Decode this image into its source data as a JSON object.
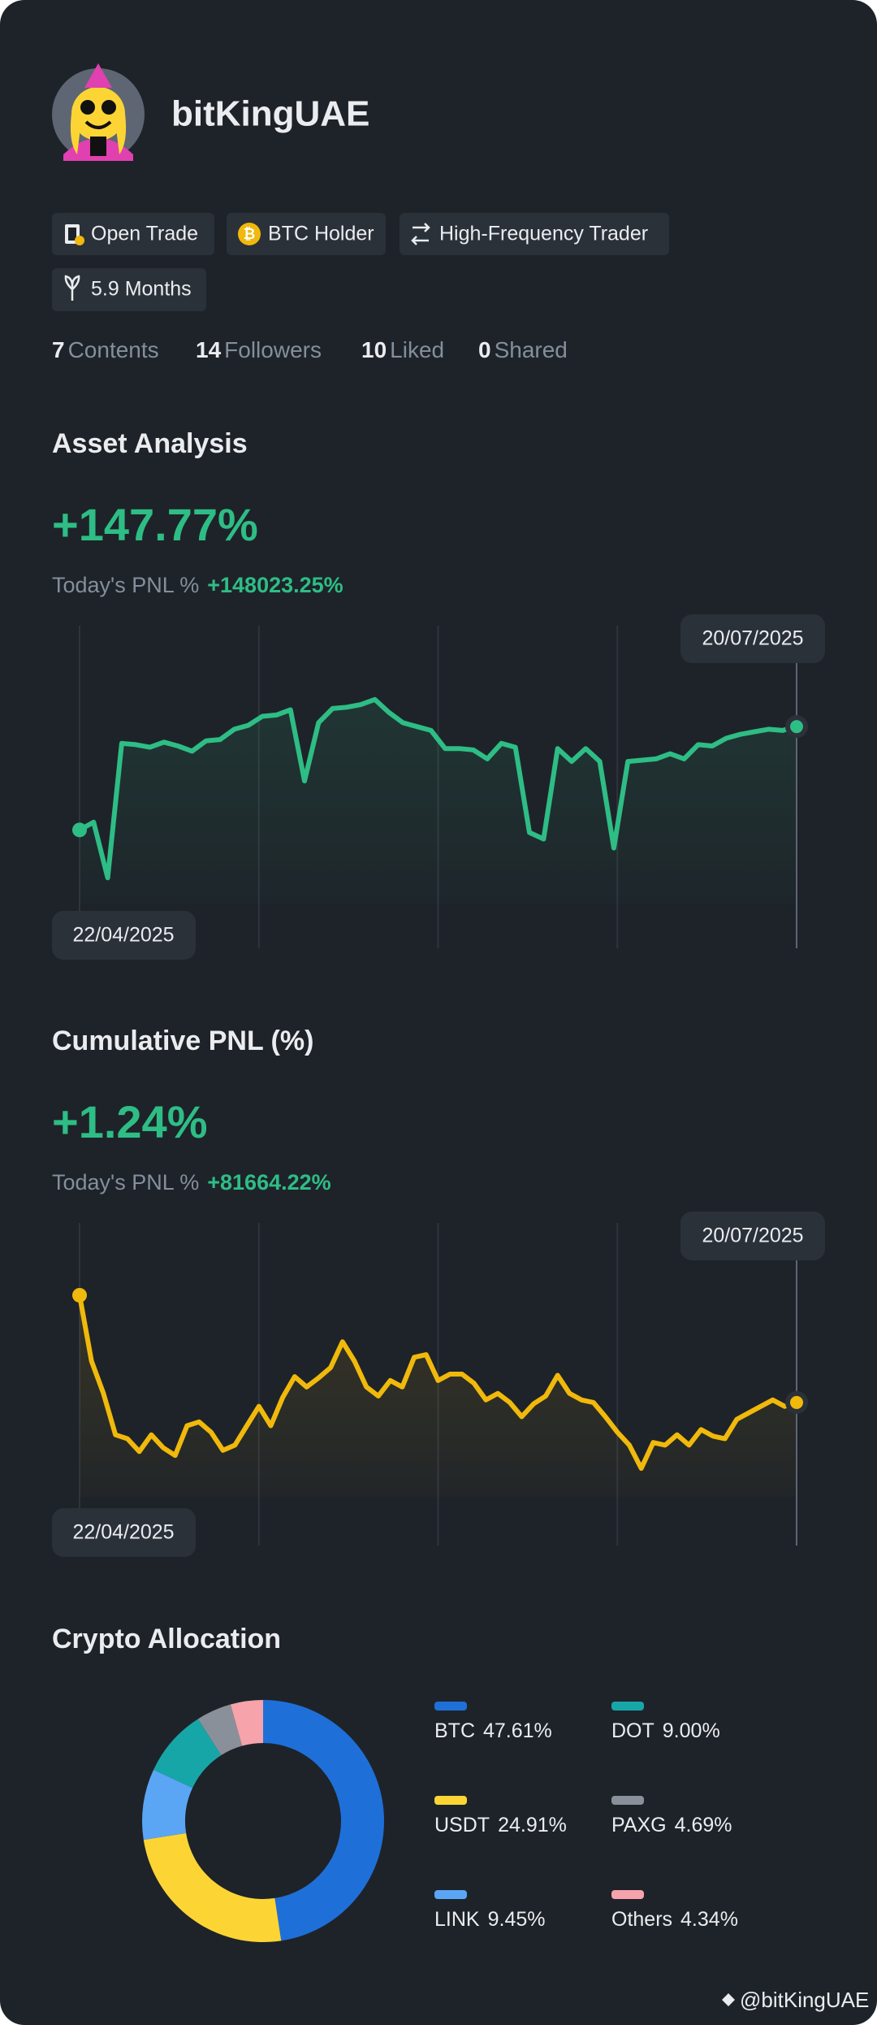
{
  "profile": {
    "name": "bitKingUAE",
    "badges": [
      "Open Trade",
      "BTC Holder",
      "High-Frequency Trader",
      "5.9 Months"
    ],
    "stats": [
      {
        "value": "7",
        "label": "Contents"
      },
      {
        "value": "14",
        "label": "Followers"
      },
      {
        "value": "10",
        "label": "Liked"
      },
      {
        "value": "0",
        "label": "Shared"
      }
    ]
  },
  "chart_data": [
    {
      "type": "line",
      "title": "Asset Analysis",
      "headline": "+147.77%",
      "subtitle_label": "Today's PNL %",
      "subtitle_value": "+148023.25%",
      "start_date": "22/04/2025",
      "end_date": "20/07/2025",
      "color": "#2ebd85",
      "ylim": [
        0,
        100
      ],
      "values": [
        28.5,
        31.5,
        10,
        62,
        61.5,
        60.5,
        62.5,
        61,
        59,
        63,
        63.5,
        67.5,
        69,
        72.5,
        73,
        75,
        47.5,
        70,
        75.5,
        76,
        77,
        79,
        74,
        70,
        68.5,
        67,
        60,
        60,
        59.5,
        56,
        62,
        60.5,
        27.5,
        25,
        60,
        55,
        60,
        55,
        21.5,
        55,
        55.5,
        56,
        58,
        56,
        61.5,
        61,
        64,
        65.5,
        66.5,
        67.5,
        67,
        68.5
      ]
    },
    {
      "type": "line",
      "title": "Cumulative PNL (%)",
      "headline": "+1.24%",
      "subtitle_label": "Today's PNL %",
      "subtitle_value": "+81664.22%",
      "start_date": "22/04/2025",
      "end_date": "20/07/2025",
      "color": "#f0b90b",
      "ylim": [
        0,
        100
      ],
      "values": [
        78,
        52.5,
        40,
        24,
        22.5,
        17.5,
        24,
        19,
        16,
        27.5,
        29,
        25,
        18,
        20,
        27.5,
        35,
        27.5,
        38.5,
        46.5,
        42.5,
        46,
        50,
        60,
        52.5,
        42.5,
        39,
        45,
        42.5,
        54,
        55,
        45,
        47.5,
        47.5,
        44,
        37.5,
        40,
        36.5,
        31,
        36,
        39,
        47,
        40,
        37.5,
        36.5,
        31,
        25,
        20,
        11,
        21,
        20,
        24,
        20,
        26,
        23.5,
        22.5,
        30,
        32.5,
        35,
        37.5,
        35,
        36.5
      ]
    },
    {
      "type": "pie",
      "title": "Crypto Allocation",
      "categories": [
        "BTC",
        "USDT",
        "LINK",
        "DOT",
        "PAXG",
        "Others"
      ],
      "values": [
        47.61,
        24.91,
        9.45,
        9.0,
        4.69,
        4.34
      ],
      "value_labels": [
        "47.61%",
        "24.91%",
        "9.45%",
        "9.00%",
        "4.69%",
        "4.34%"
      ],
      "colors": [
        "#1f6fd8",
        "#fcd535",
        "#5aa6f5",
        "#17a6a8",
        "#8a9099",
        "#f6a3ab"
      ]
    }
  ],
  "watermark": "@bitKingUAE"
}
